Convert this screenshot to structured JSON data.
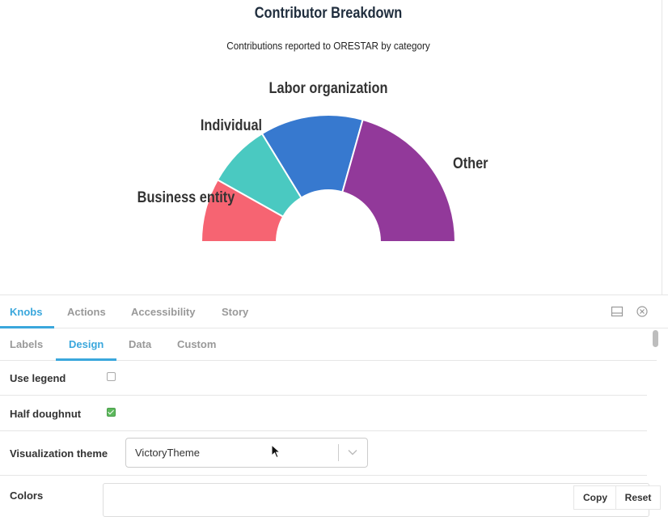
{
  "preview": {
    "chart_title": "Contributor Breakdown",
    "chart_subtitle": "Contributions reported to ORESTAR by category"
  },
  "chart_data": {
    "type": "pie",
    "variant": "half-doughnut",
    "title": "Contributor Breakdown",
    "subtitle": "Contributions reported to ORESTAR by category",
    "categories": [
      "Business entity",
      "Individual",
      "Labor organization",
      "Other"
    ],
    "values": [
      13,
      13,
      21,
      33
    ],
    "colors": [
      "#f66472",
      "#4ac9c1",
      "#3779cf",
      "#92399a"
    ],
    "legend": false
  },
  "addon_tabs": [
    {
      "label": "Knobs",
      "active": true
    },
    {
      "label": "Actions",
      "active": false
    },
    {
      "label": "Accessibility",
      "active": false
    },
    {
      "label": "Story",
      "active": false
    }
  ],
  "knob_tabs": [
    {
      "label": "Labels",
      "active": false
    },
    {
      "label": "Design",
      "active": true
    },
    {
      "label": "Data",
      "active": false
    },
    {
      "label": "Custom",
      "active": false
    }
  ],
  "knobs": {
    "use_legend": {
      "label": "Use legend",
      "checked": false
    },
    "half_doughnut": {
      "label": "Half doughnut",
      "checked": true
    },
    "visualization_theme": {
      "label": "Visualization theme",
      "value": "VictoryTheme"
    },
    "colors": {
      "label": "Colors",
      "value": ""
    }
  },
  "buttons": {
    "copy": "Copy",
    "reset": "Reset"
  },
  "icons": {
    "panel_bottom": "panel-layout-icon",
    "close": "close-circle-icon",
    "select_chevron": "chevron-down-icon"
  }
}
